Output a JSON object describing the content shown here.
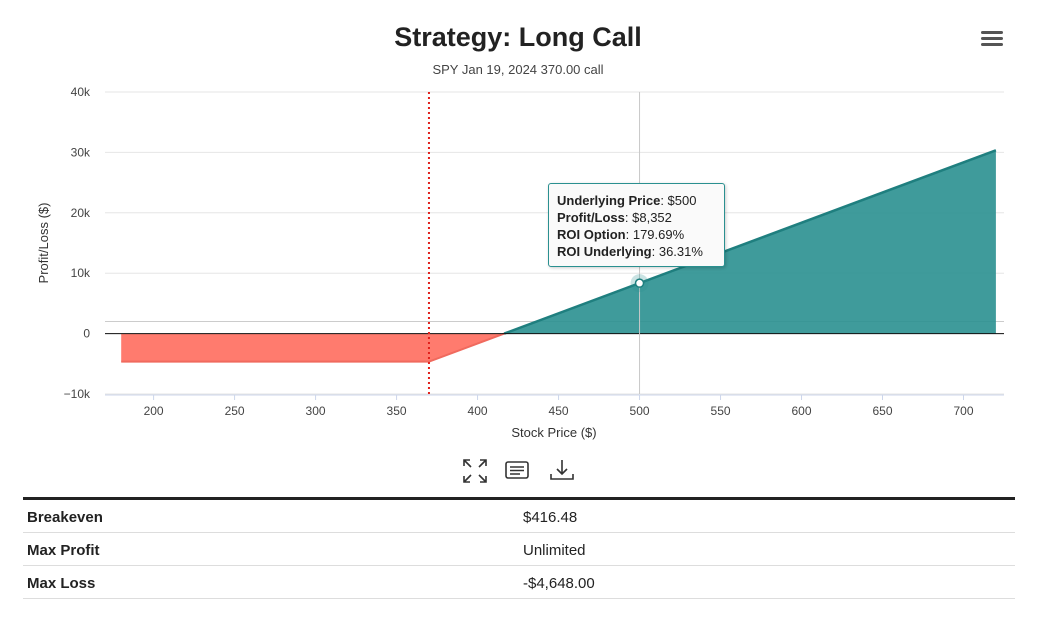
{
  "header": {
    "title": "Strategy: Long Call",
    "subtitle": "SPY Jan 19, 2024 370.00 call"
  },
  "chart_data": {
    "type": "area",
    "xlabel": "Stock Price ($)",
    "ylabel": "Profit/Loss ($)",
    "xlim": [
      170,
      725
    ],
    "ylim": [
      -10000,
      40000
    ],
    "x_ticks": [
      200,
      250,
      300,
      350,
      400,
      450,
      500,
      550,
      600,
      650,
      700
    ],
    "y_ticks": [
      -10000,
      0,
      10000,
      20000,
      30000,
      40000
    ],
    "y_tick_labels": [
      "−10k",
      "0",
      "10k",
      "20k",
      "30k",
      "40k"
    ],
    "series": [
      {
        "values": [
          [
            180,
            -4648
          ],
          [
            370,
            -4648
          ],
          [
            416.48,
            0
          ],
          [
            720,
            30352
          ]
        ],
        "positive_color": "#2a9090",
        "negative_color": "#ff7b6e"
      }
    ],
    "reference_lines": {
      "strike_x": 370,
      "strike_color": "#e0201b",
      "hover_x": 500,
      "upper_gray_y": 2000
    },
    "hover_point": {
      "x": 500,
      "y": 8352
    },
    "grid": true
  },
  "tooltip": {
    "rows": [
      {
        "label": "Underlying Price",
        "value": ": $500"
      },
      {
        "label": "Profit/Loss",
        "value": ": $8,352"
      },
      {
        "label": "ROI Option",
        "value": ": 179.69%"
      },
      {
        "label": "ROI Underlying",
        "value": ": 36.31%"
      }
    ]
  },
  "toolbar": {
    "icons": [
      "fullscreen-icon",
      "data-table-icon",
      "download-icon"
    ]
  },
  "stats": {
    "rows": [
      {
        "label": "Breakeven",
        "value": "$416.48"
      },
      {
        "label": "Max Profit",
        "value": "Unlimited"
      },
      {
        "label": "Max Loss",
        "value": "-$4,648.00"
      }
    ]
  }
}
